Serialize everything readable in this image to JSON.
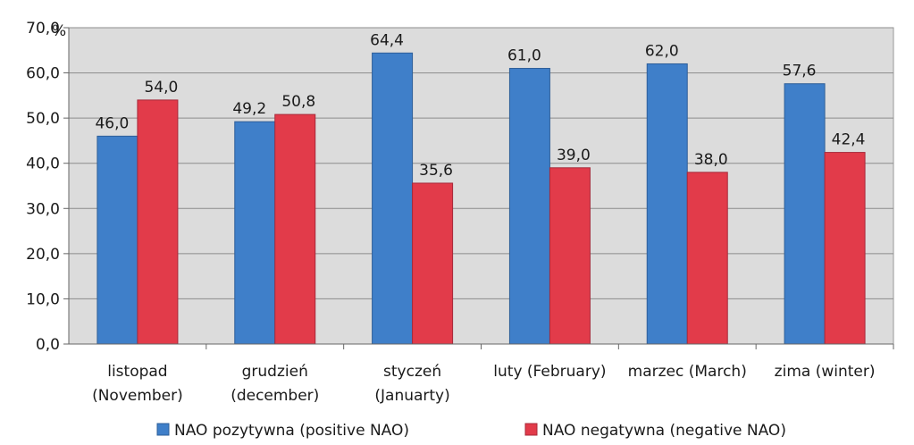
{
  "chart_data": {
    "type": "bar",
    "unit_label": "%",
    "categories": [
      [
        "listopad",
        "(November)"
      ],
      [
        "grudzień",
        "(december)"
      ],
      [
        "styczeń",
        "(Januarty)"
      ],
      [
        "luty (February)"
      ],
      [
        "marzec (March)"
      ],
      [
        "zima (winter)"
      ]
    ],
    "series": [
      {
        "name": "NAO pozytywna (positive NAO)",
        "color": "#3f7fc9",
        "values": [
          46.0,
          49.2,
          64.4,
          61.0,
          62.0,
          57.6
        ],
        "labels": [
          "46,0",
          "49,2",
          "64,4",
          "61,0",
          "62,0",
          "57,6"
        ]
      },
      {
        "name": "NAO negatywna (negative NAO)",
        "color": "#e23b4a",
        "values": [
          54.0,
          50.8,
          35.6,
          39.0,
          38.0,
          42.4
        ],
        "labels": [
          "54,0",
          "50,8",
          "35,6",
          "39,0",
          "38,0",
          "42,4"
        ]
      }
    ],
    "y_ticks": [
      "0,0",
      "10,0",
      "20,0",
      "30,0",
      "40,0",
      "50,0",
      "60,0",
      "70,0"
    ],
    "ylim": [
      0,
      70
    ],
    "grid": true,
    "plot_background": "#dcdcdc",
    "legend_position": "bottom"
  }
}
